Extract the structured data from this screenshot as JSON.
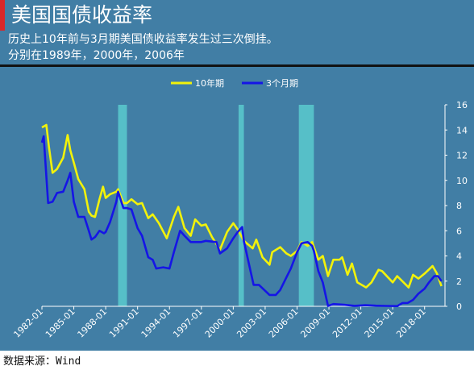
{
  "header": {
    "title": "美国国债收益率",
    "subtitle_line1": "历史上10年前与3月期美国债收益率发生过三次倒挂。",
    "subtitle_line2": "分别在1989年，2000年，2006年"
  },
  "footer": {
    "source": "数据来源：Wind"
  },
  "colors": {
    "background": "#417ea5",
    "ten_year": "#f2f20a",
    "three_month": "#1515e6",
    "inversion_band": "#56bfc8",
    "accent": "#d9272a"
  },
  "chart_data": {
    "type": "line",
    "title": "",
    "xlabel": "",
    "ylabel": "",
    "x_ticks": [
      "1982-01",
      "1985-01",
      "1988-01",
      "1991-01",
      "1994-01",
      "1997-01",
      "2000-01",
      "2003-01",
      "2006-01",
      "2009-01",
      "2012-01",
      "2015-01",
      "2018-01"
    ],
    "xlim": [
      "1982-01",
      "2019-12"
    ],
    "ylim": [
      0,
      16
    ],
    "y_ticks": [
      "0",
      "2",
      "4",
      "6",
      "8",
      "10",
      "12",
      "14",
      "16"
    ],
    "y_axis_side": "right",
    "grid": false,
    "legend_position": "top-center",
    "inversion_periods": [
      [
        "1989-03",
        "1990-01"
      ],
      [
        "2000-07",
        "2001-01"
      ],
      [
        "2006-03",
        "2007-08"
      ]
    ],
    "series": [
      {
        "name": "10年期",
        "color": "#f2f20a",
        "points": [
          [
            "1982-01",
            14.2
          ],
          [
            "1982-06",
            14.4
          ],
          [
            "1982-09",
            12.6
          ],
          [
            "1983-01",
            10.6
          ],
          [
            "1983-06",
            10.9
          ],
          [
            "1984-01",
            11.8
          ],
          [
            "1984-06",
            13.6
          ],
          [
            "1984-09",
            12.4
          ],
          [
            "1985-01",
            11.4
          ],
          [
            "1985-06",
            10.1
          ],
          [
            "1986-01",
            9.3
          ],
          [
            "1986-06",
            7.5
          ],
          [
            "1986-09",
            7.2
          ],
          [
            "1987-01",
            7.1
          ],
          [
            "1987-06",
            8.5
          ],
          [
            "1987-10",
            9.5
          ],
          [
            "1988-01",
            8.6
          ],
          [
            "1988-06",
            8.9
          ],
          [
            "1989-01",
            9.1
          ],
          [
            "1989-03",
            9.3
          ],
          [
            "1989-09",
            8.2
          ],
          [
            "1990-01",
            8.2
          ],
          [
            "1990-06",
            8.5
          ],
          [
            "1991-01",
            8.1
          ],
          [
            "1991-06",
            8.2
          ],
          [
            "1992-01",
            7.0
          ],
          [
            "1992-06",
            7.3
          ],
          [
            "1993-01",
            6.6
          ],
          [
            "1993-10",
            5.4
          ],
          [
            "1994-06",
            7.1
          ],
          [
            "1994-11",
            7.9
          ],
          [
            "1995-06",
            6.2
          ],
          [
            "1996-01",
            5.6
          ],
          [
            "1996-06",
            6.9
          ],
          [
            "1997-01",
            6.4
          ],
          [
            "1997-06",
            6.5
          ],
          [
            "1998-01",
            5.5
          ],
          [
            "1998-10",
            4.5
          ],
          [
            "1999-06",
            5.9
          ],
          [
            "2000-01",
            6.6
          ],
          [
            "2000-06",
            6.1
          ],
          [
            "2001-01",
            5.2
          ],
          [
            "2001-11",
            4.6
          ],
          [
            "2002-03",
            5.3
          ],
          [
            "2002-10",
            3.9
          ],
          [
            "2003-06",
            3.3
          ],
          [
            "2003-09",
            4.3
          ],
          [
            "2004-06",
            4.7
          ],
          [
            "2005-01",
            4.2
          ],
          [
            "2005-06",
            4.0
          ],
          [
            "2006-01",
            4.4
          ],
          [
            "2006-06",
            5.1
          ],
          [
            "2007-01",
            4.8
          ],
          [
            "2007-06",
            5.1
          ],
          [
            "2008-01",
            3.7
          ],
          [
            "2008-06",
            4.0
          ],
          [
            "2008-12",
            2.4
          ],
          [
            "2009-06",
            3.7
          ],
          [
            "2010-01",
            3.7
          ],
          [
            "2010-04",
            3.9
          ],
          [
            "2010-10",
            2.5
          ],
          [
            "2011-03",
            3.4
          ],
          [
            "2011-09",
            1.9
          ],
          [
            "2012-07",
            1.5
          ],
          [
            "2013-01",
            1.9
          ],
          [
            "2013-09",
            2.9
          ],
          [
            "2014-01",
            2.8
          ],
          [
            "2015-01",
            1.9
          ],
          [
            "2015-06",
            2.4
          ],
          [
            "2016-07",
            1.5
          ],
          [
            "2016-12",
            2.5
          ],
          [
            "2017-06",
            2.2
          ],
          [
            "2018-01",
            2.6
          ],
          [
            "2018-10",
            3.2
          ],
          [
            "2019-03",
            2.6
          ],
          [
            "2019-08",
            1.6
          ]
        ]
      },
      {
        "name": "3个月期",
        "color": "#1515e6",
        "points": [
          [
            "1982-01",
            13.0
          ],
          [
            "1982-03",
            13.5
          ],
          [
            "1982-08",
            8.2
          ],
          [
            "1983-01",
            8.3
          ],
          [
            "1983-06",
            9.0
          ],
          [
            "1984-01",
            9.1
          ],
          [
            "1984-06",
            10.0
          ],
          [
            "1984-09",
            10.6
          ],
          [
            "1985-01",
            8.3
          ],
          [
            "1985-06",
            7.1
          ],
          [
            "1986-01",
            7.1
          ],
          [
            "1986-06",
            6.0
          ],
          [
            "1986-09",
            5.3
          ],
          [
            "1987-01",
            5.5
          ],
          [
            "1987-06",
            6.0
          ],
          [
            "1987-11",
            5.8
          ],
          [
            "1988-01",
            5.9
          ],
          [
            "1988-06",
            6.7
          ],
          [
            "1989-01",
            8.3
          ],
          [
            "1989-03",
            9.1
          ],
          [
            "1989-09",
            7.8
          ],
          [
            "1990-01",
            7.8
          ],
          [
            "1990-06",
            7.7
          ],
          [
            "1991-01",
            6.2
          ],
          [
            "1991-06",
            5.6
          ],
          [
            "1992-01",
            3.9
          ],
          [
            "1992-06",
            3.7
          ],
          [
            "1992-10",
            3.0
          ],
          [
            "1993-06",
            3.1
          ],
          [
            "1994-01",
            3.0
          ],
          [
            "1994-06",
            4.3
          ],
          [
            "1995-01",
            6.0
          ],
          [
            "1995-06",
            5.6
          ],
          [
            "1996-01",
            5.1
          ],
          [
            "1996-06",
            5.1
          ],
          [
            "1997-01",
            5.1
          ],
          [
            "1997-06",
            5.2
          ],
          [
            "1998-06",
            5.1
          ],
          [
            "1998-10",
            4.2
          ],
          [
            "1999-06",
            4.6
          ],
          [
            "2000-01",
            5.4
          ],
          [
            "2000-06",
            5.9
          ],
          [
            "2000-11",
            6.3
          ],
          [
            "2001-01",
            5.2
          ],
          [
            "2001-06",
            3.6
          ],
          [
            "2001-12",
            1.7
          ],
          [
            "2002-06",
            1.7
          ],
          [
            "2003-06",
            0.9
          ],
          [
            "2004-01",
            0.9
          ],
          [
            "2004-06",
            1.3
          ],
          [
            "2005-01",
            2.3
          ],
          [
            "2005-06",
            3.0
          ],
          [
            "2006-01",
            4.3
          ],
          [
            "2006-06",
            5.0
          ],
          [
            "2007-01",
            5.1
          ],
          [
            "2007-06",
            4.8
          ],
          [
            "2007-08",
            4.4
          ],
          [
            "2008-01",
            2.8
          ],
          [
            "2008-06",
            1.9
          ],
          [
            "2008-12",
            0.03
          ],
          [
            "2009-06",
            0.18
          ],
          [
            "2010-06",
            0.12
          ],
          [
            "2011-06",
            0.04
          ],
          [
            "2012-06",
            0.09
          ],
          [
            "2013-06",
            0.05
          ],
          [
            "2014-06",
            0.03
          ],
          [
            "2015-06",
            0.02
          ],
          [
            "2015-12",
            0.26
          ],
          [
            "2016-06",
            0.27
          ],
          [
            "2016-12",
            0.51
          ],
          [
            "2017-06",
            1.0
          ],
          [
            "2018-01",
            1.4
          ],
          [
            "2018-06",
            1.9
          ],
          [
            "2018-12",
            2.4
          ],
          [
            "2019-04",
            2.4
          ],
          [
            "2019-08",
            2.0
          ]
        ]
      }
    ]
  }
}
